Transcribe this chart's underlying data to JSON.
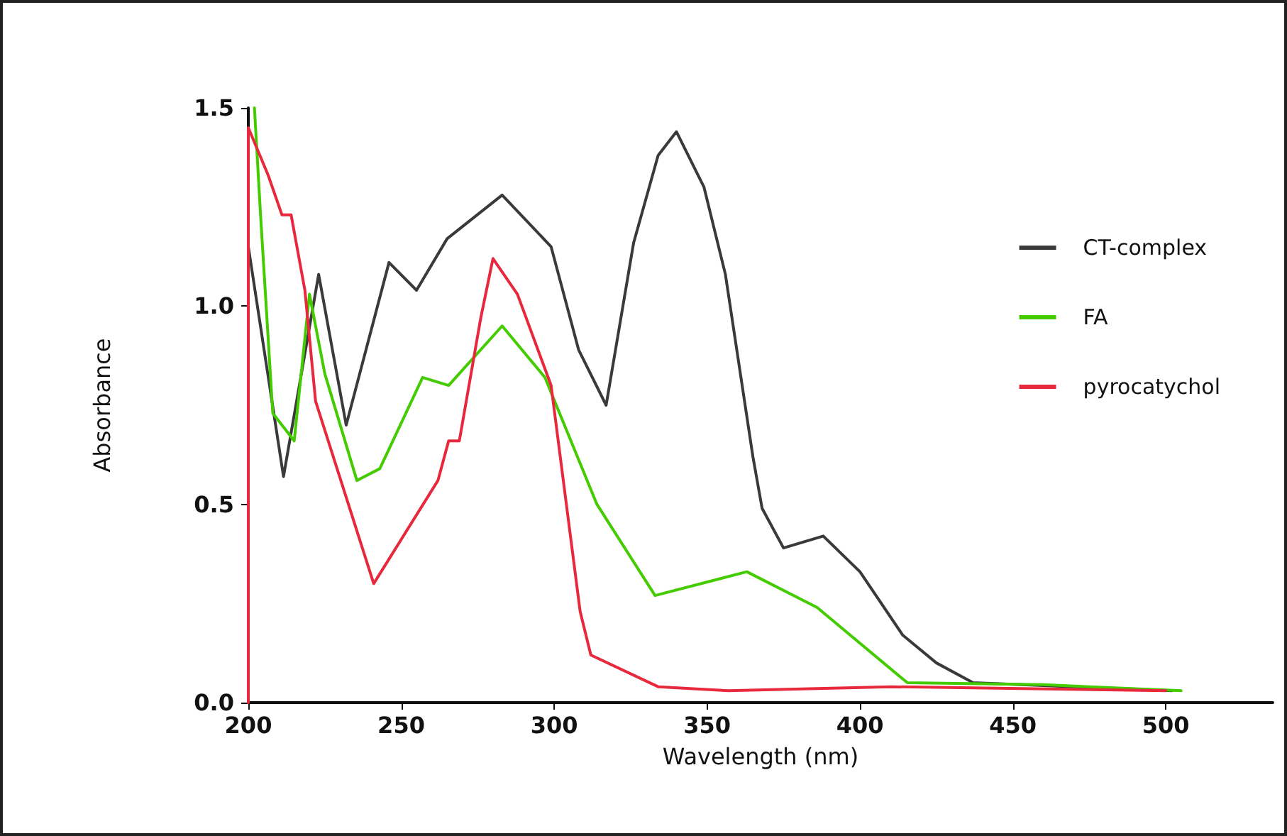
{
  "chart_data": {
    "type": "line",
    "xlabel": "Wavelength (nm)",
    "ylabel": "Absorbance",
    "xlim": [
      200,
      535
    ],
    "xticks": [
      200,
      250,
      300,
      350,
      400,
      450,
      500
    ],
    "ylim": [
      0,
      1.5
    ],
    "yticks": [
      {
        "value": 0,
        "label": "0.0"
      },
      {
        "value": 0.5,
        "label": "0.5"
      },
      {
        "value": 1,
        "label": "1.0"
      },
      {
        "value": 1.5,
        "label": "1.5"
      }
    ],
    "grid": false,
    "legend": "right",
    "marker": "none",
    "line_style": "solid",
    "series": [
      {
        "name": "CT-complex",
        "color": "#3a3a3a",
        "x": [
          200,
          211.5,
          223,
          232,
          246,
          255,
          265,
          283,
          299,
          308,
          317,
          326,
          334,
          340,
          349,
          356,
          365,
          368,
          375,
          388,
          400,
          414,
          425,
          437,
          470,
          502
        ],
        "values": [
          1.15,
          0.57,
          1.08,
          0.7,
          1.11,
          1.04,
          1.17,
          1.28,
          1.15,
          0.89,
          0.75,
          1.16,
          1.38,
          1.44,
          1.3,
          1.08,
          0.62,
          0.49,
          0.39,
          0.42,
          0.33,
          0.17,
          0.1,
          0.05,
          0.04,
          0.03
        ]
      },
      {
        "name": "FA",
        "color": "#44cc00",
        "x": [
          202,
          204,
          208,
          215,
          220,
          225,
          235.5,
          243,
          257,
          265.5,
          283,
          297,
          314,
          333,
          363,
          386,
          415.5,
          460,
          505
        ],
        "values": [
          1.5,
          1.23,
          0.73,
          0.66,
          1.03,
          0.83,
          0.56,
          0.59,
          0.82,
          0.8,
          0.95,
          0.82,
          0.5,
          0.27,
          0.33,
          0.24,
          0.05,
          0.045,
          0.03
        ]
      },
      {
        "name": "pyrocatychol",
        "color": "#e8283c",
        "x": [
          200,
          200,
          206.5,
          211,
          214,
          218.5,
          222,
          241,
          262,
          265.5,
          269,
          276,
          280,
          288,
          299,
          308.5,
          312,
          334,
          357,
          410,
          500
        ],
        "values": [
          0,
          1.45,
          1.33,
          1.23,
          1.23,
          1.04,
          0.76,
          0.3,
          0.56,
          0.66,
          0.66,
          0.97,
          1.12,
          1.03,
          0.8,
          0.23,
          0.12,
          0.04,
          0.03,
          0.04,
          0.03
        ]
      }
    ]
  }
}
